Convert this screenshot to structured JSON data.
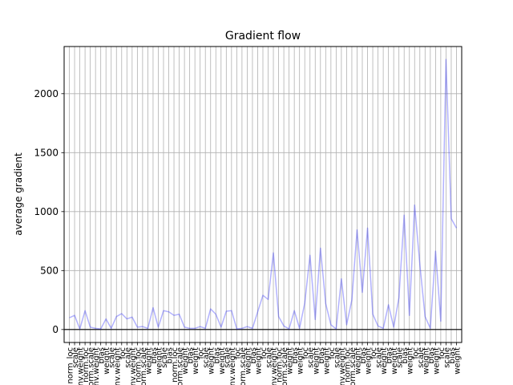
{
  "chart_data": {
    "type": "line",
    "title": "Gradient flow",
    "xlabel": "",
    "ylabel": "average gradient",
    "ylim": [
      -110,
      2400
    ],
    "yticks": [
      0,
      500,
      1000,
      1500,
      2000
    ],
    "grid": true,
    "line_color": "#0000ff",
    "line_alpha": 0.3,
    "zero_line_color": "#000000",
    "grid_color": "#b0b0b0",
    "categories": [
      "norm_loc",
      "scale",
      "conv.weight",
      "norm.loc",
      "norm.scale",
      "conv.weight",
      "bias",
      "weight",
      "scale",
      "conv.weight",
      "loc",
      "scale",
      "conv.weight",
      "norm.loc",
      "norm.scale",
      "weight",
      "bias",
      "weight",
      "scale",
      "bias",
      "norm.loc",
      "norm.scale",
      "weight",
      "bias",
      "weight",
      "loc",
      "scale",
      "weight",
      "bias",
      "weight",
      "scale",
      "conv.weight",
      "loc",
      "norm.scale",
      "weight",
      "bias",
      "weight",
      "loc",
      "scale",
      "conv.weight",
      "norm.loc",
      "norm.scale",
      "weight",
      "bias",
      "weight",
      "loc",
      "scale",
      "weight",
      "bias",
      "weight",
      "loc",
      "scale",
      "conv.weight",
      "norm.loc",
      "norm.scale",
      "weight",
      "bias",
      "weight",
      "loc",
      "scale",
      "weight",
      "bias",
      "weight",
      "scale",
      "bias",
      "weight",
      "loc",
      "scale",
      "weight",
      "bias",
      "weight",
      "loc",
      "scale",
      "bias",
      "weight"
    ],
    "values": [
      100,
      120,
      5,
      160,
      20,
      10,
      5,
      90,
      10,
      110,
      135,
      90,
      105,
      20,
      25,
      10,
      185,
      20,
      160,
      150,
      120,
      130,
      20,
      10,
      10,
      25,
      10,
      175,
      130,
      20,
      155,
      160,
      5,
      10,
      25,
      10,
      150,
      290,
      255,
      650,
      110,
      30,
      5,
      160,
      10,
      225,
      630,
      85,
      690,
      220,
      40,
      5,
      430,
      40,
      250,
      845,
      315,
      860,
      130,
      30,
      10,
      210,
      20,
      270,
      970,
      120,
      1055,
      550,
      110,
      10,
      665,
      70,
      2290,
      940,
      860
    ]
  }
}
